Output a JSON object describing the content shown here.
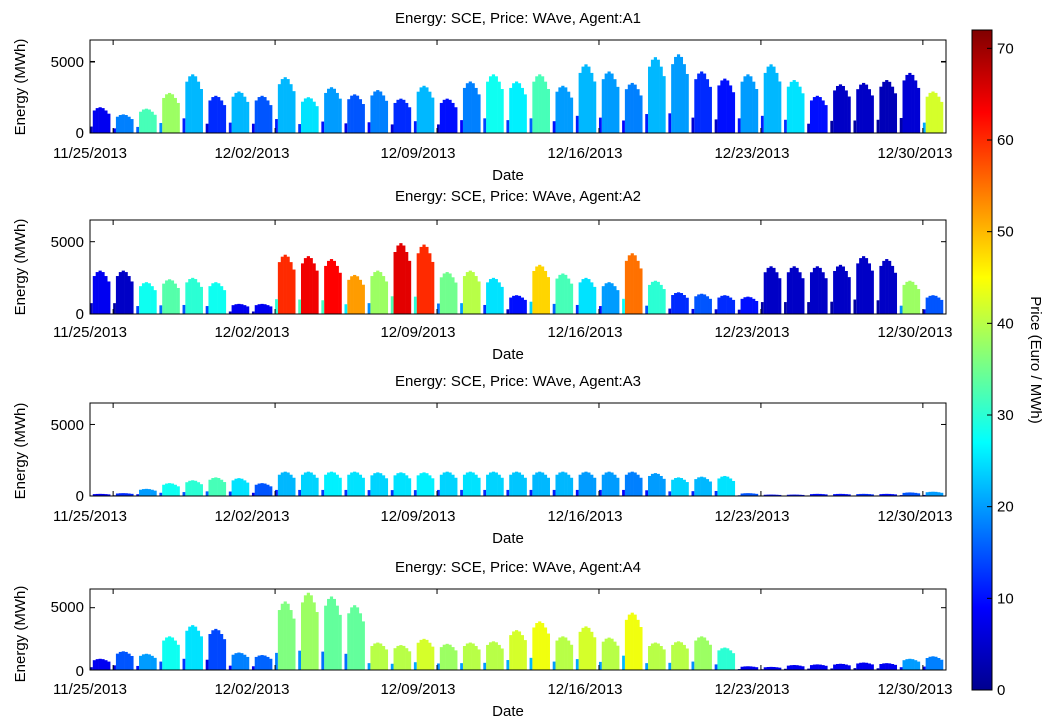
{
  "figure": {
    "date_ticks": [
      "11/25/2013",
      "12/02/2013",
      "12/09/2013",
      "12/16/2013",
      "12/23/2013",
      "12/30/2013"
    ],
    "colorbar": {
      "label": "Price (Euro / MWh)",
      "ticks": [
        0,
        10,
        20,
        30,
        40,
        50,
        60,
        70
      ],
      "range": [
        0,
        72
      ],
      "colormap": "jet"
    }
  },
  "chart_data": [
    {
      "type": "bar",
      "title": "Energy: SCE, Price: WAve, Agent:A1",
      "xlabel": "Date",
      "ylabel": "Energy (MWh)",
      "yticks": [
        0,
        5000
      ],
      "ylim": [
        0,
        6500
      ],
      "xlim": [
        "11/24/2013",
        "12/31/2013"
      ],
      "color_by": "Price (Euro / MWh)",
      "x": [
        "11/24",
        "11/25",
        "11/26",
        "11/27",
        "11/28",
        "11/29",
        "11/30",
        "12/01",
        "12/02",
        "12/03",
        "12/04",
        "12/05",
        "12/06",
        "12/07",
        "12/08",
        "12/09",
        "12/10",
        "12/11",
        "12/12",
        "12/13",
        "12/14",
        "12/15",
        "12/16",
        "12/17",
        "12/18",
        "12/19",
        "12/20",
        "12/21",
        "12/22",
        "12/23",
        "12/24",
        "12/25",
        "12/26",
        "12/27",
        "12/28",
        "12/29",
        "12/30"
      ],
      "values": [
        1800,
        1300,
        1700,
        2800,
        4100,
        2600,
        2900,
        2600,
        3900,
        2500,
        3200,
        2700,
        3000,
        2400,
        3300,
        2400,
        3600,
        4100,
        3600,
        4100,
        3300,
        4800,
        4300,
        3500,
        5300,
        5500,
        4300,
        3800,
        4100,
        4800,
        3700,
        2600,
        3400,
        3500,
        3700,
        4200,
        2900
      ],
      "prices": [
        8,
        18,
        32,
        38,
        22,
        12,
        22,
        15,
        22,
        25,
        20,
        15,
        18,
        12,
        22,
        10,
        18,
        28,
        26,
        32,
        20,
        22,
        20,
        18,
        22,
        20,
        12,
        10,
        20,
        22,
        25,
        10,
        5,
        5,
        4,
        6,
        42
      ]
    },
    {
      "type": "bar",
      "title": "Energy: SCE, Price: WAve, Agent:A2",
      "xlabel": "Date",
      "ylabel": "Energy (MWh)",
      "yticks": [
        0,
        5000
      ],
      "ylim": [
        0,
        6500
      ],
      "xlim": [
        "11/24/2013",
        "12/31/2013"
      ],
      "color_by": "Price (Euro / MWh)",
      "x": [
        "11/24",
        "11/25",
        "11/26",
        "11/27",
        "11/28",
        "11/29",
        "11/30",
        "12/01",
        "12/02",
        "12/03",
        "12/04",
        "12/05",
        "12/06",
        "12/07",
        "12/08",
        "12/09",
        "12/10",
        "12/11",
        "12/12",
        "12/13",
        "12/14",
        "12/15",
        "12/16",
        "12/17",
        "12/18",
        "12/19",
        "12/20",
        "12/21",
        "12/22",
        "12/23",
        "12/24",
        "12/25",
        "12/26",
        "12/27",
        "12/28",
        "12/29",
        "12/30"
      ],
      "values": [
        3000,
        3000,
        2200,
        2400,
        2500,
        2200,
        700,
        700,
        4100,
        4000,
        3800,
        2700,
        3000,
        4900,
        4800,
        2900,
        3000,
        2500,
        1300,
        3400,
        2800,
        2500,
        2200,
        4200,
        2300,
        1500,
        1400,
        1300,
        1200,
        3300,
        3300,
        3300,
        3400,
        4000,
        3800,
        2300,
        1300
      ],
      "prices": [
        8,
        5,
        28,
        33,
        30,
        28,
        8,
        8,
        60,
        64,
        63,
        52,
        38,
        65,
        60,
        35,
        40,
        25,
        10,
        48,
        32,
        25,
        20,
        55,
        30,
        12,
        15,
        12,
        10,
        5,
        5,
        5,
        5,
        5,
        5,
        38,
        15
      ]
    },
    {
      "type": "bar",
      "title": "Energy: SCE, Price: WAve, Agent:A3",
      "xlabel": "Date",
      "ylabel": "Energy (MWh)",
      "yticks": [
        0,
        5000
      ],
      "ylim": [
        0,
        6500
      ],
      "xlim": [
        "11/24/2013",
        "12/31/2013"
      ],
      "color_by": "Price (Euro / MWh)",
      "x": [
        "11/24",
        "11/25",
        "11/26",
        "11/27",
        "11/28",
        "11/29",
        "11/30",
        "12/01",
        "12/02",
        "12/03",
        "12/04",
        "12/05",
        "12/06",
        "12/07",
        "12/08",
        "12/09",
        "12/10",
        "12/11",
        "12/12",
        "12/13",
        "12/14",
        "12/15",
        "12/16",
        "12/17",
        "12/18",
        "12/19",
        "12/20",
        "12/21",
        "12/22",
        "12/23",
        "12/24",
        "12/25",
        "12/26",
        "12/27",
        "12/28",
        "12/29",
        "12/30"
      ],
      "values": [
        150,
        200,
        500,
        900,
        1100,
        1300,
        1250,
        900,
        1700,
        1700,
        1700,
        1700,
        1650,
        1650,
        1650,
        1700,
        1700,
        1700,
        1700,
        1700,
        1700,
        1700,
        1700,
        1700,
        1600,
        1300,
        1350,
        1400,
        200,
        100,
        100,
        150,
        150,
        150,
        150,
        250,
        300
      ],
      "prices": [
        8,
        12,
        20,
        28,
        30,
        32,
        25,
        15,
        22,
        24,
        26,
        25,
        24,
        25,
        26,
        24,
        25,
        24,
        23,
        22,
        22,
        20,
        20,
        18,
        20,
        24,
        22,
        25,
        15,
        10,
        10,
        10,
        10,
        12,
        10,
        15,
        20
      ]
    },
    {
      "type": "bar",
      "title": "Energy: SCE, Price: WAve, Agent:A4",
      "xlabel": "Date",
      "ylabel": "Energy (MWh)",
      "yticks": [
        0,
        5000
      ],
      "ylim": [
        0,
        6500
      ],
      "xlim": [
        "11/24/2013",
        "12/31/2013"
      ],
      "color_by": "Price (Euro / MWh)",
      "x": [
        "11/24",
        "11/25",
        "11/26",
        "11/27",
        "11/28",
        "11/29",
        "11/30",
        "12/01",
        "12/02",
        "12/03",
        "12/04",
        "12/05",
        "12/06",
        "12/07",
        "12/08",
        "12/09",
        "12/10",
        "12/11",
        "12/12",
        "12/13",
        "12/14",
        "12/15",
        "12/16",
        "12/17",
        "12/18",
        "12/19",
        "12/20",
        "12/21",
        "12/22",
        "12/23",
        "12/24",
        "12/25",
        "12/26",
        "12/27",
        "12/28",
        "12/29",
        "12/30"
      ],
      "values": [
        900,
        1500,
        1300,
        2700,
        3600,
        3300,
        1400,
        1200,
        5500,
        6200,
        5900,
        5200,
        2200,
        2000,
        2500,
        2100,
        2200,
        2300,
        3200,
        3900,
        2700,
        3500,
        2600,
        4600,
        2200,
        2300,
        2700,
        1800,
        300,
        250,
        400,
        450,
        500,
        600,
        550,
        900,
        1100
      ],
      "prices": [
        8,
        15,
        20,
        28,
        25,
        14,
        18,
        16,
        36,
        38,
        34,
        34,
        40,
        40,
        42,
        38,
        40,
        40,
        42,
        44,
        40,
        42,
        40,
        44,
        40,
        40,
        38,
        30,
        8,
        8,
        8,
        8,
        8,
        8,
        8,
        20,
        18
      ]
    }
  ]
}
